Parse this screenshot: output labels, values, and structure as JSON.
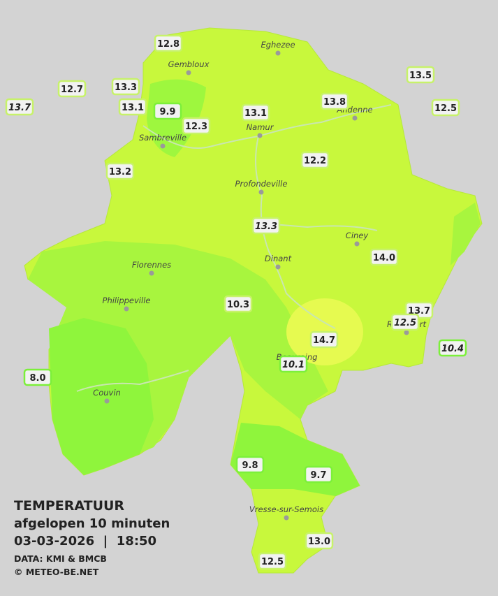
{
  "legend": {
    "title": "TEMPERATUUR",
    "subtitle": "afgelopen 10 minuten",
    "datetime": "03-03-2026  |  18:50",
    "source": "DATA: KMI & BMCB",
    "copyright": "© METEO-BE.NET"
  },
  "towns": [
    "Eghezee",
    "Gembloux",
    "Andenne",
    "Namur",
    "Sambreville",
    "Profondeville",
    "Ciney",
    "Dinant",
    "Florennes",
    "Philippeville",
    "Rochefort",
    "Beauraing",
    "Couvin",
    "Vresse-sur-Semois"
  ],
  "stations": [
    {
      "label": "12.8"
    },
    {
      "label": "13.5"
    },
    {
      "label": "12.7"
    },
    {
      "label": "13.3"
    },
    {
      "label": "13.7",
      "italic": true
    },
    {
      "label": "13.1"
    },
    {
      "label": "9.9"
    },
    {
      "label": "13.1"
    },
    {
      "label": "13.8"
    },
    {
      "label": "12.5"
    },
    {
      "label": "12.3"
    },
    {
      "label": "12.2"
    },
    {
      "label": "13.2"
    },
    {
      "label": "13.3",
      "italic": true
    },
    {
      "label": "14.0"
    },
    {
      "label": "10.3"
    },
    {
      "label": "13.7"
    },
    {
      "label": "12.5",
      "italic": true
    },
    {
      "label": "14.7"
    },
    {
      "label": "10.4",
      "italic": true
    },
    {
      "label": "10.1",
      "italic": true
    },
    {
      "label": "8.0"
    },
    {
      "label": "9.8"
    },
    {
      "label": "9.7"
    },
    {
      "label": "13.0"
    },
    {
      "label": "12.5"
    }
  ]
}
